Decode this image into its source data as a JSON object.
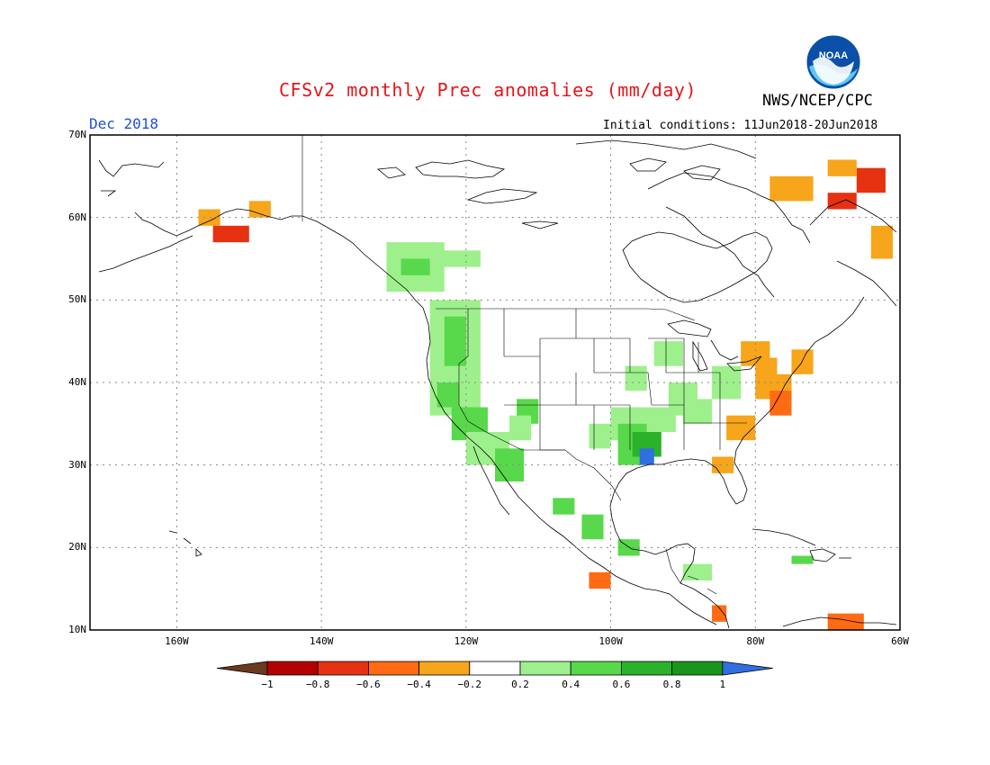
{
  "header": {
    "title": "CFSv2 monthly Prec anomalies (mm/day)",
    "agency": "NWS/NCEP/CPC",
    "month": "Dec 2018",
    "initial_conditions": "Initial conditions: 11Jun2018-20Jun2018",
    "logo_text": "NOAA"
  },
  "axes": {
    "lat_labels": [
      "70N",
      "60N",
      "50N",
      "40N",
      "30N",
      "20N",
      "10N"
    ],
    "lon_labels": [
      "160W",
      "140W",
      "120W",
      "100W",
      "80W",
      "60W"
    ],
    "lat_range": [
      10,
      70
    ],
    "lon_range": [
      -172,
      -60
    ],
    "grid": true
  },
  "legend": {
    "labels": [
      "-1",
      "-0.8",
      "-0.6",
      "-0.4",
      "-0.2",
      "0.2",
      "0.4",
      "0.6",
      "0.8",
      "1"
    ],
    "colors": [
      "#6b3a1e",
      "#b40000",
      "#e63211",
      "#ff6a12",
      "#f7a51a",
      "#ffffff",
      "#9ef08c",
      "#58d94b",
      "#2ab22a",
      "#18961c",
      "#2f6fe0"
    ]
  },
  "colors": {
    "title": "#e8141a",
    "month": "#1f4fd8"
  }
}
